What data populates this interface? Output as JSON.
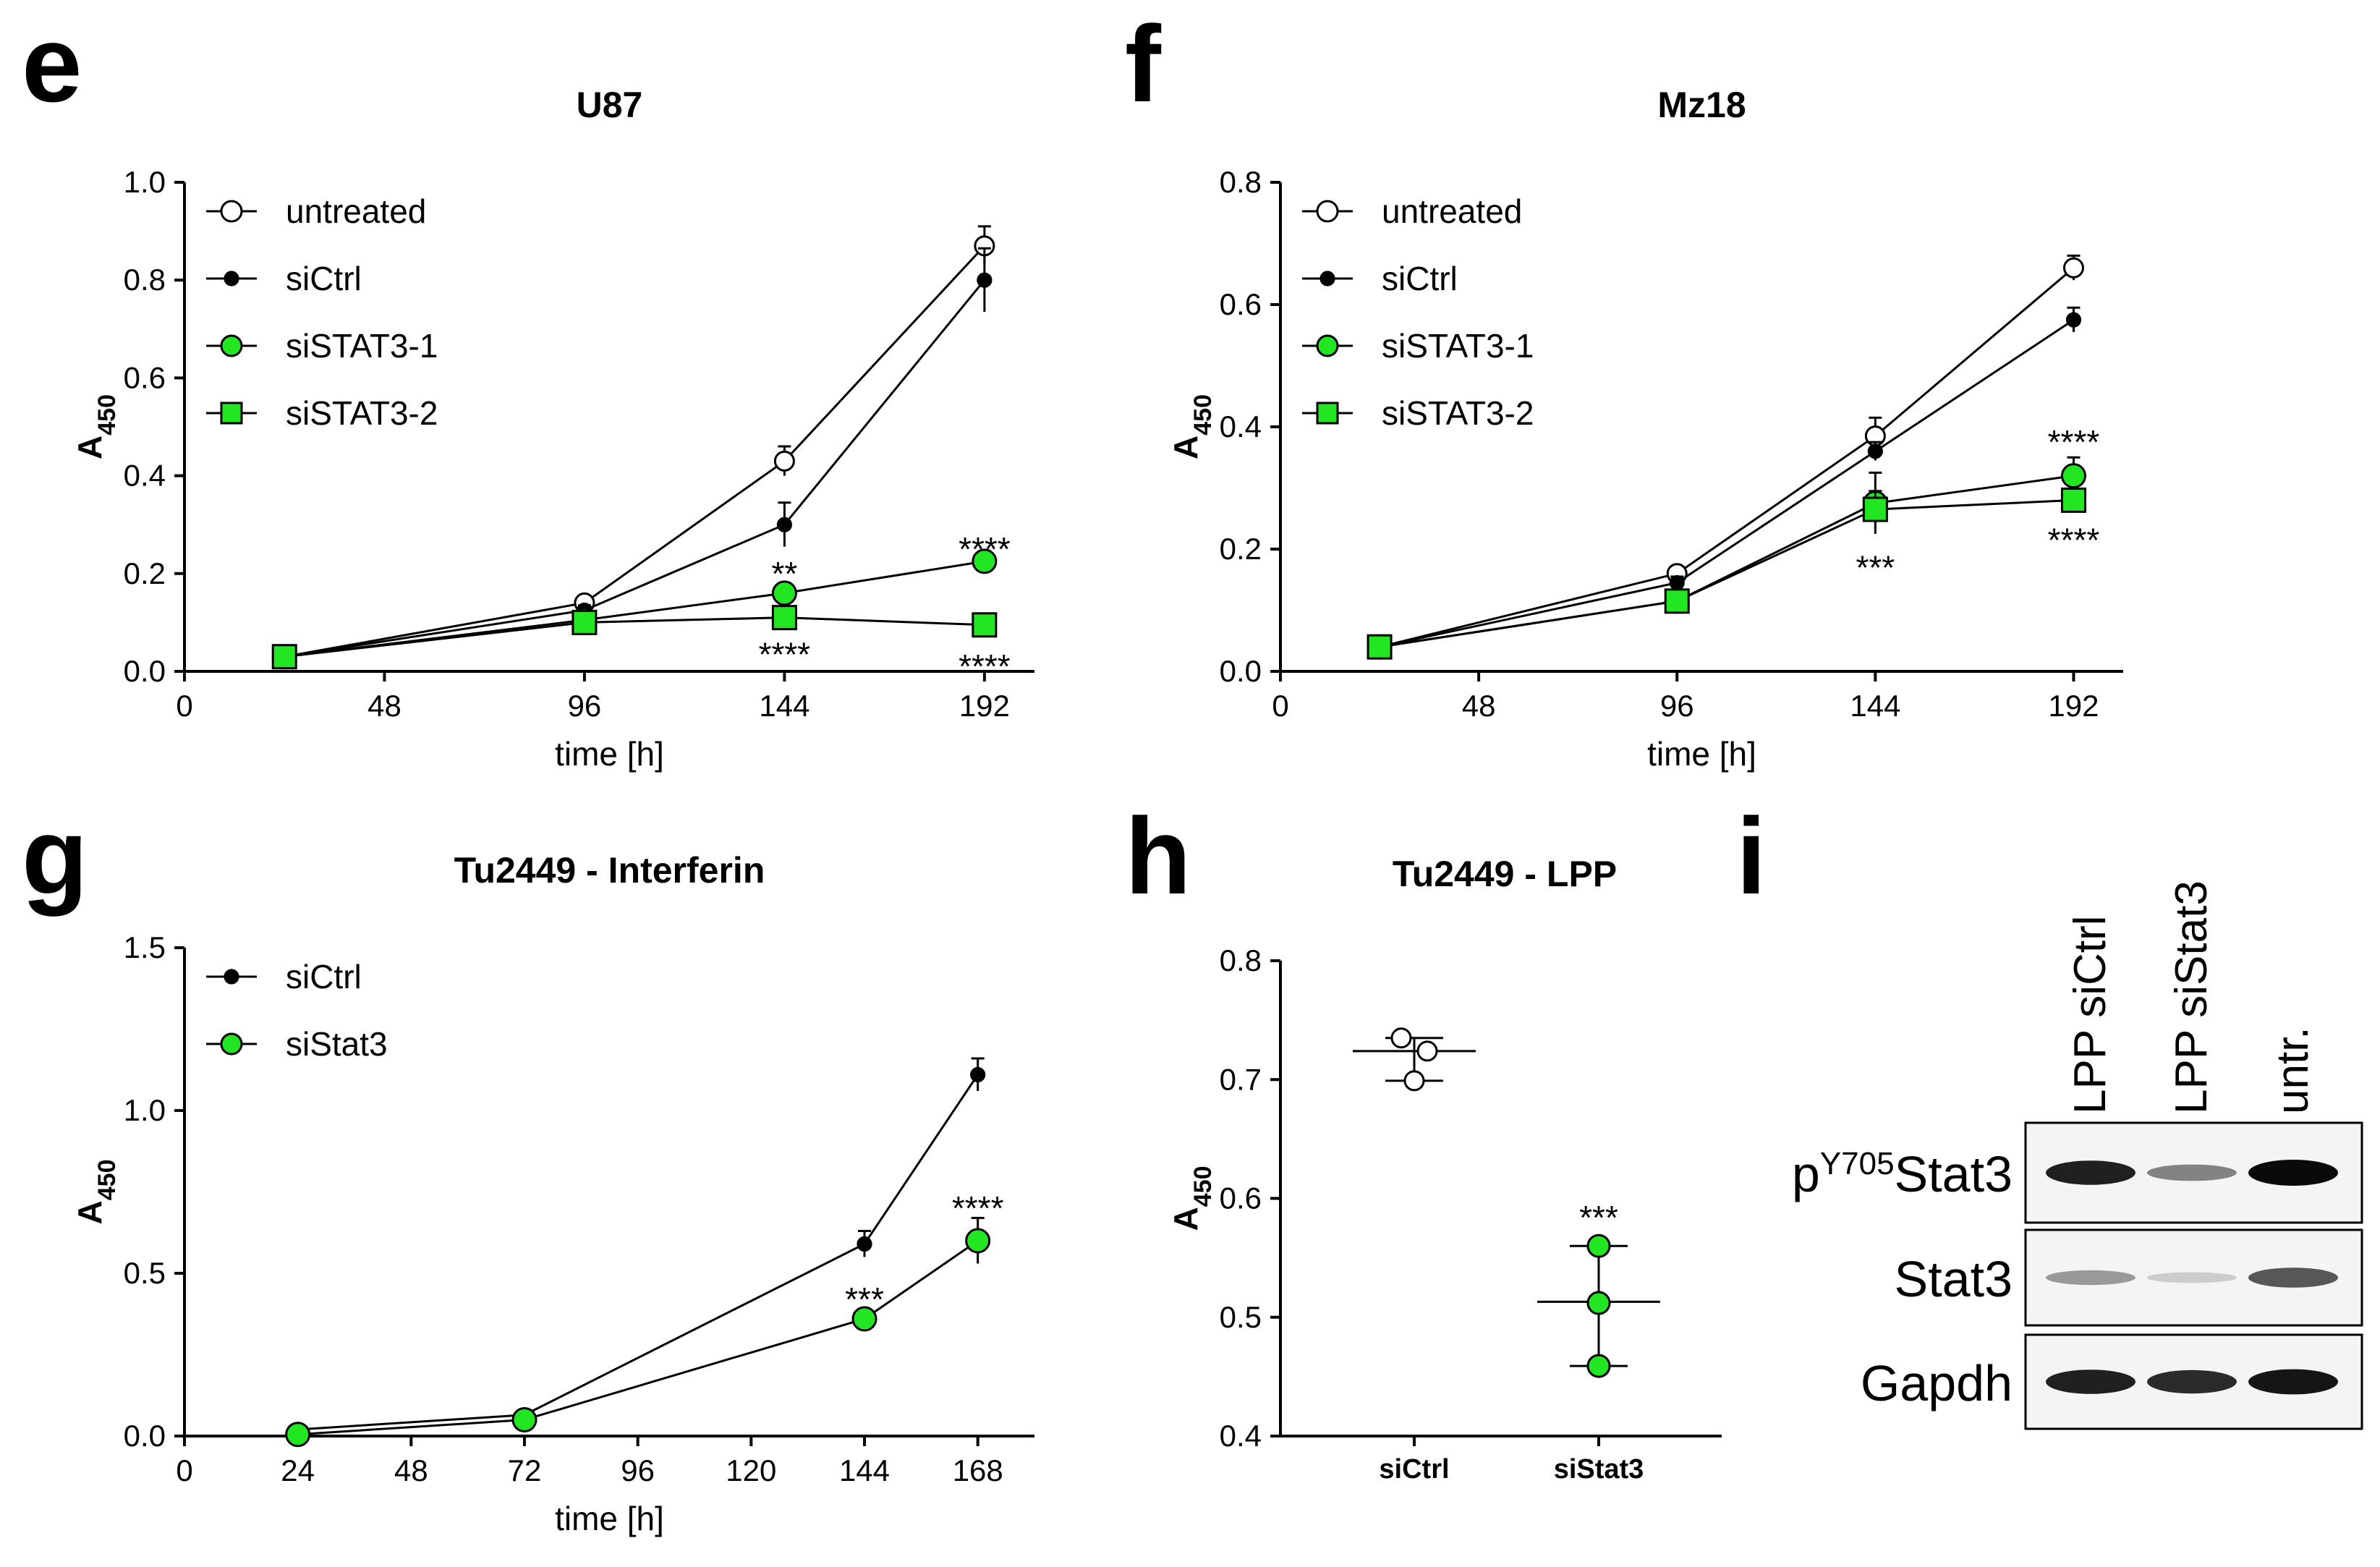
{
  "panels": {
    "e": "e",
    "f": "f",
    "g": "g",
    "h": "h",
    "i": "i"
  },
  "chart_data": [
    {
      "panel": "e",
      "type": "line",
      "title": "U87",
      "xlabel": "time [h]",
      "ylabel": "A",
      "ylabel_sub": "450",
      "xlim": [
        0,
        204
      ],
      "ylim": [
        0,
        1.0
      ],
      "xticks": [
        0,
        48,
        96,
        144,
        192
      ],
      "yticks": [
        0.0,
        0.2,
        0.4,
        0.6,
        0.8,
        1.0
      ],
      "xtick_labels": [
        "0",
        "48",
        "96",
        "144",
        "192"
      ],
      "ytick_labels": [
        "0.0",
        "0.2",
        "0.4",
        "0.6",
        "0.8",
        "1.0"
      ],
      "legend_position": "top-left",
      "series": [
        {
          "name": "untreated",
          "marker": "open-circle",
          "color": "#ffffff",
          "x": [
            24,
            96,
            144,
            192
          ],
          "y": [
            0.03,
            0.14,
            0.43,
            0.87
          ],
          "err": [
            0.005,
            0.01,
            0.03,
            0.04
          ]
        },
        {
          "name": "siCtrl",
          "marker": "filled-dot",
          "color": "#000000",
          "x": [
            24,
            96,
            144,
            192
          ],
          "y": [
            0.03,
            0.125,
            0.3,
            0.8
          ],
          "err": [
            0.005,
            0.01,
            0.045,
            0.065
          ]
        },
        {
          "name": "siSTAT3-1",
          "marker": "green-circle",
          "color": "#22e622",
          "x": [
            24,
            96,
            144,
            192
          ],
          "y": [
            0.03,
            0.105,
            0.16,
            0.225
          ],
          "err": [
            0.005,
            0.01,
            0.02,
            0.01
          ]
        },
        {
          "name": "siSTAT3-2",
          "marker": "green-square",
          "color": "#22e622",
          "x": [
            24,
            96,
            144,
            192
          ],
          "y": [
            0.03,
            0.1,
            0.11,
            0.095
          ],
          "err": [
            0.005,
            0.01,
            0.01,
            0.01
          ]
        }
      ],
      "annotations": [
        {
          "text": "**",
          "x": 144,
          "y": 0.2
        },
        {
          "text": "****",
          "x": 144,
          "y": 0.035
        },
        {
          "text": "****",
          "x": 192,
          "y": 0.25
        },
        {
          "text": "****",
          "x": 192,
          "y": 0.01
        }
      ]
    },
    {
      "panel": "f",
      "type": "line",
      "title": "Mz18",
      "xlabel": "time [h]",
      "ylabel": "A",
      "ylabel_sub": "450",
      "xlim": [
        0,
        204
      ],
      "ylim": [
        0,
        0.8
      ],
      "xticks": [
        0,
        48,
        96,
        144,
        192
      ],
      "yticks": [
        0.0,
        0.2,
        0.4,
        0.6,
        0.8
      ],
      "xtick_labels": [
        "0",
        "48",
        "96",
        "144",
        "192"
      ],
      "ytick_labels": [
        "0.0",
        "0.2",
        "0.4",
        "0.6",
        "0.8"
      ],
      "legend_position": "top-left",
      "series": [
        {
          "name": "untreated",
          "marker": "open-circle",
          "color": "#ffffff",
          "x": [
            24,
            96,
            144,
            192
          ],
          "y": [
            0.04,
            0.16,
            0.385,
            0.66
          ],
          "err": [
            0.005,
            0.01,
            0.03,
            0.02
          ]
        },
        {
          "name": "siCtrl",
          "marker": "filled-dot",
          "color": "#000000",
          "x": [
            24,
            96,
            144,
            192
          ],
          "y": [
            0.04,
            0.145,
            0.36,
            0.575
          ],
          "err": [
            0.005,
            0.01,
            0.015,
            0.02
          ]
        },
        {
          "name": "siSTAT3-1",
          "marker": "green-circle",
          "color": "#22e622",
          "x": [
            24,
            96,
            144,
            192
          ],
          "y": [
            0.04,
            0.115,
            0.275,
            0.32
          ],
          "err": [
            0.005,
            0.01,
            0.05,
            0.03
          ]
        },
        {
          "name": "siSTAT3-2",
          "marker": "green-square",
          "color": "#22e622",
          "x": [
            24,
            96,
            144,
            192
          ],
          "y": [
            0.04,
            0.115,
            0.265,
            0.28
          ],
          "err": [
            0.005,
            0.01,
            0.03,
            0.01
          ]
        }
      ],
      "annotations": [
        {
          "text": "***",
          "x": 144,
          "y": 0.17
        },
        {
          "text": "****",
          "x": 192,
          "y": 0.375
        },
        {
          "text": "****",
          "x": 192,
          "y": 0.215
        }
      ]
    },
    {
      "panel": "g",
      "type": "line",
      "title": "Tu2449 - Interferin",
      "xlabel": "time [h]",
      "ylabel": "A",
      "ylabel_sub": "450",
      "xlim": [
        0,
        180
      ],
      "ylim": [
        0,
        1.5
      ],
      "xticks": [
        0,
        24,
        48,
        72,
        96,
        120,
        144,
        168
      ],
      "yticks": [
        0.0,
        0.5,
        1.0,
        1.5
      ],
      "xtick_labels": [
        "0",
        "24",
        "48",
        "72",
        "96",
        "120",
        "144",
        "168"
      ],
      "ytick_labels": [
        "0.0",
        "0.5",
        "1.0",
        "1.5"
      ],
      "legend_position": "top-left",
      "series": [
        {
          "name": "siCtrl",
          "marker": "filled-dot",
          "color": "#000000",
          "x": [
            24,
            72,
            144,
            168
          ],
          "y": [
            0.02,
            0.065,
            0.59,
            1.11
          ],
          "err": [
            0.005,
            0.01,
            0.04,
            0.05
          ]
        },
        {
          "name": "siStat3",
          "marker": "green-circle",
          "color": "#22e622",
          "x": [
            24,
            72,
            144,
            168
          ],
          "y": [
            0.005,
            0.05,
            0.36,
            0.6
          ],
          "err": [
            0.005,
            0.01,
            0.02,
            0.07
          ]
        }
      ],
      "annotations": [
        {
          "text": "***",
          "x": 144,
          "y": 0.42
        },
        {
          "text": "****",
          "x": 168,
          "y": 0.7
        }
      ]
    },
    {
      "panel": "h",
      "type": "scatter",
      "title": "Tu2449 - LPP",
      "xlabel": "",
      "ylabel": "A",
      "ylabel_sub": "450",
      "categories": [
        "siCtrl",
        "siStat3"
      ],
      "ylim": [
        0.4,
        0.8
      ],
      "yticks": [
        0.4,
        0.5,
        0.6,
        0.7,
        0.8
      ],
      "ytick_labels": [
        "0.4",
        "0.5",
        "0.6",
        "0.7",
        "0.8"
      ],
      "series": [
        {
          "name": "siCtrl",
          "marker": "open-circle",
          "color": "#ffffff",
          "points": [
            0.735,
            0.724,
            0.699
          ],
          "mean": 0.724,
          "sd": [
            0.699,
            0.735
          ]
        },
        {
          "name": "siStat3",
          "marker": "green-circle",
          "color": "#22e622",
          "points": [
            0.56,
            0.512,
            0.459
          ],
          "mean": 0.513,
          "sd": [
            0.459,
            0.56
          ]
        }
      ],
      "annotations": [
        {
          "text": "***",
          "category": "siStat3",
          "y": 0.585
        }
      ]
    }
  ],
  "western_blot": {
    "columns": [
      "LPP siCtrl",
      "LPP siStat3",
      "untr."
    ],
    "rows": [
      {
        "name": "Stat3",
        "prefix": "p",
        "superscript": "Y705",
        "intensity": [
          0.9,
          0.45,
          1.0
        ]
      },
      {
        "name": "Stat3",
        "prefix": "",
        "superscript": "",
        "intensity": [
          0.35,
          0.12,
          0.65
        ]
      },
      {
        "name": "Gapdh",
        "prefix": "",
        "superscript": "",
        "intensity": [
          0.9,
          0.85,
          0.95
        ]
      }
    ]
  }
}
